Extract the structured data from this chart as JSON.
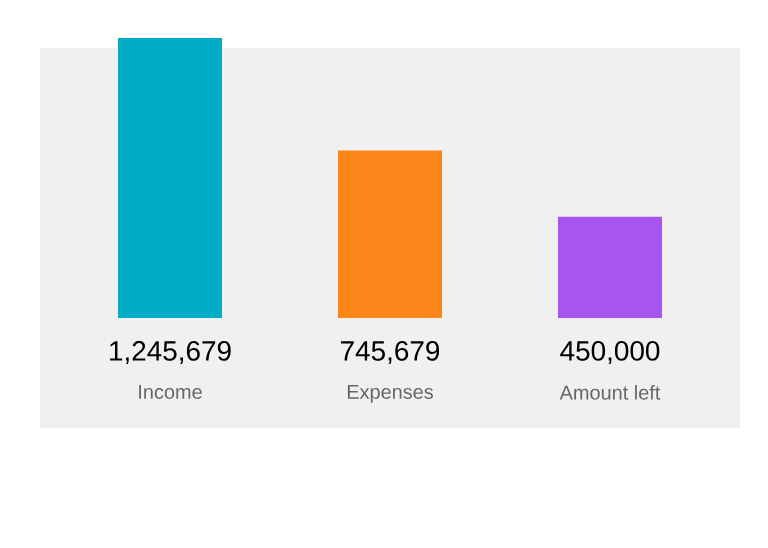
{
  "chart_data": {
    "type": "bar",
    "categories": [
      "Income",
      "Expenses",
      "Amount left"
    ],
    "values": [
      1245679,
      745679,
      450000
    ],
    "colors": [
      "#00adc4",
      "#fb8519",
      "#a855ef"
    ],
    "value_labels": [
      "1,245,679",
      "745,679",
      "450,000"
    ]
  }
}
